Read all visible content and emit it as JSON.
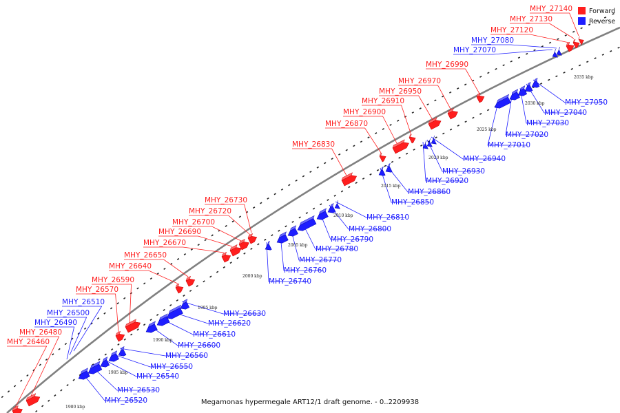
{
  "caption": "Megamonas hypermegale ART12/1 draft genome. - 0..2209938",
  "legend": [
    {
      "label": "Forward",
      "color": "#ff1e1e"
    },
    {
      "label": "Reverse",
      "color": "#1e1eff"
    }
  ],
  "colors": {
    "forward": "#ff1e1e",
    "reverse": "#1e1eff",
    "backbone": "#808080"
  },
  "kbp_marks": [
    "1980 kbp",
    "1985 kbp",
    "1990 kbp",
    "1995 kbp",
    "2000 kbp",
    "2005 kbp",
    "2010 kbp",
    "2015 kbp",
    "2020 kbp",
    "2025 kbp",
    "2030 kbp",
    "2035 kbp"
  ],
  "forward_genes": [
    "MHY_26460",
    "MHY_26480",
    "MHY_26570",
    "MHY_26590",
    "MHY_26640",
    "MHY_26650",
    "MHY_26670",
    "MHY_26690",
    "MHY_26700",
    "MHY_26720",
    "MHY_26730",
    "MHY_26830",
    "MHY_26870",
    "MHY_26900",
    "MHY_26910",
    "MHY_26950",
    "MHY_26970",
    "MHY_26990",
    "MHY_27120",
    "MHY_27130",
    "MHY_27140"
  ],
  "reverse_genes": [
    "MHY_26490",
    "MHY_26500",
    "MHY_26510",
    "MHY_26520",
    "MHY_26530",
    "MHY_26540",
    "MHY_26550",
    "MHY_26560",
    "MHY_26600",
    "MHY_26610",
    "MHY_26620",
    "MHY_26630",
    "MHY_26740",
    "MHY_26760",
    "MHY_26770",
    "MHY_26780",
    "MHY_26790",
    "MHY_26800",
    "MHY_26810",
    "MHY_26850",
    "MHY_26860",
    "MHY_26920",
    "MHY_26930",
    "MHY_26940",
    "MHY_27010",
    "MHY_27020",
    "MHY_27030",
    "MHY_27040",
    "MHY_27050",
    "MHY_27070",
    "MHY_27080"
  ]
}
